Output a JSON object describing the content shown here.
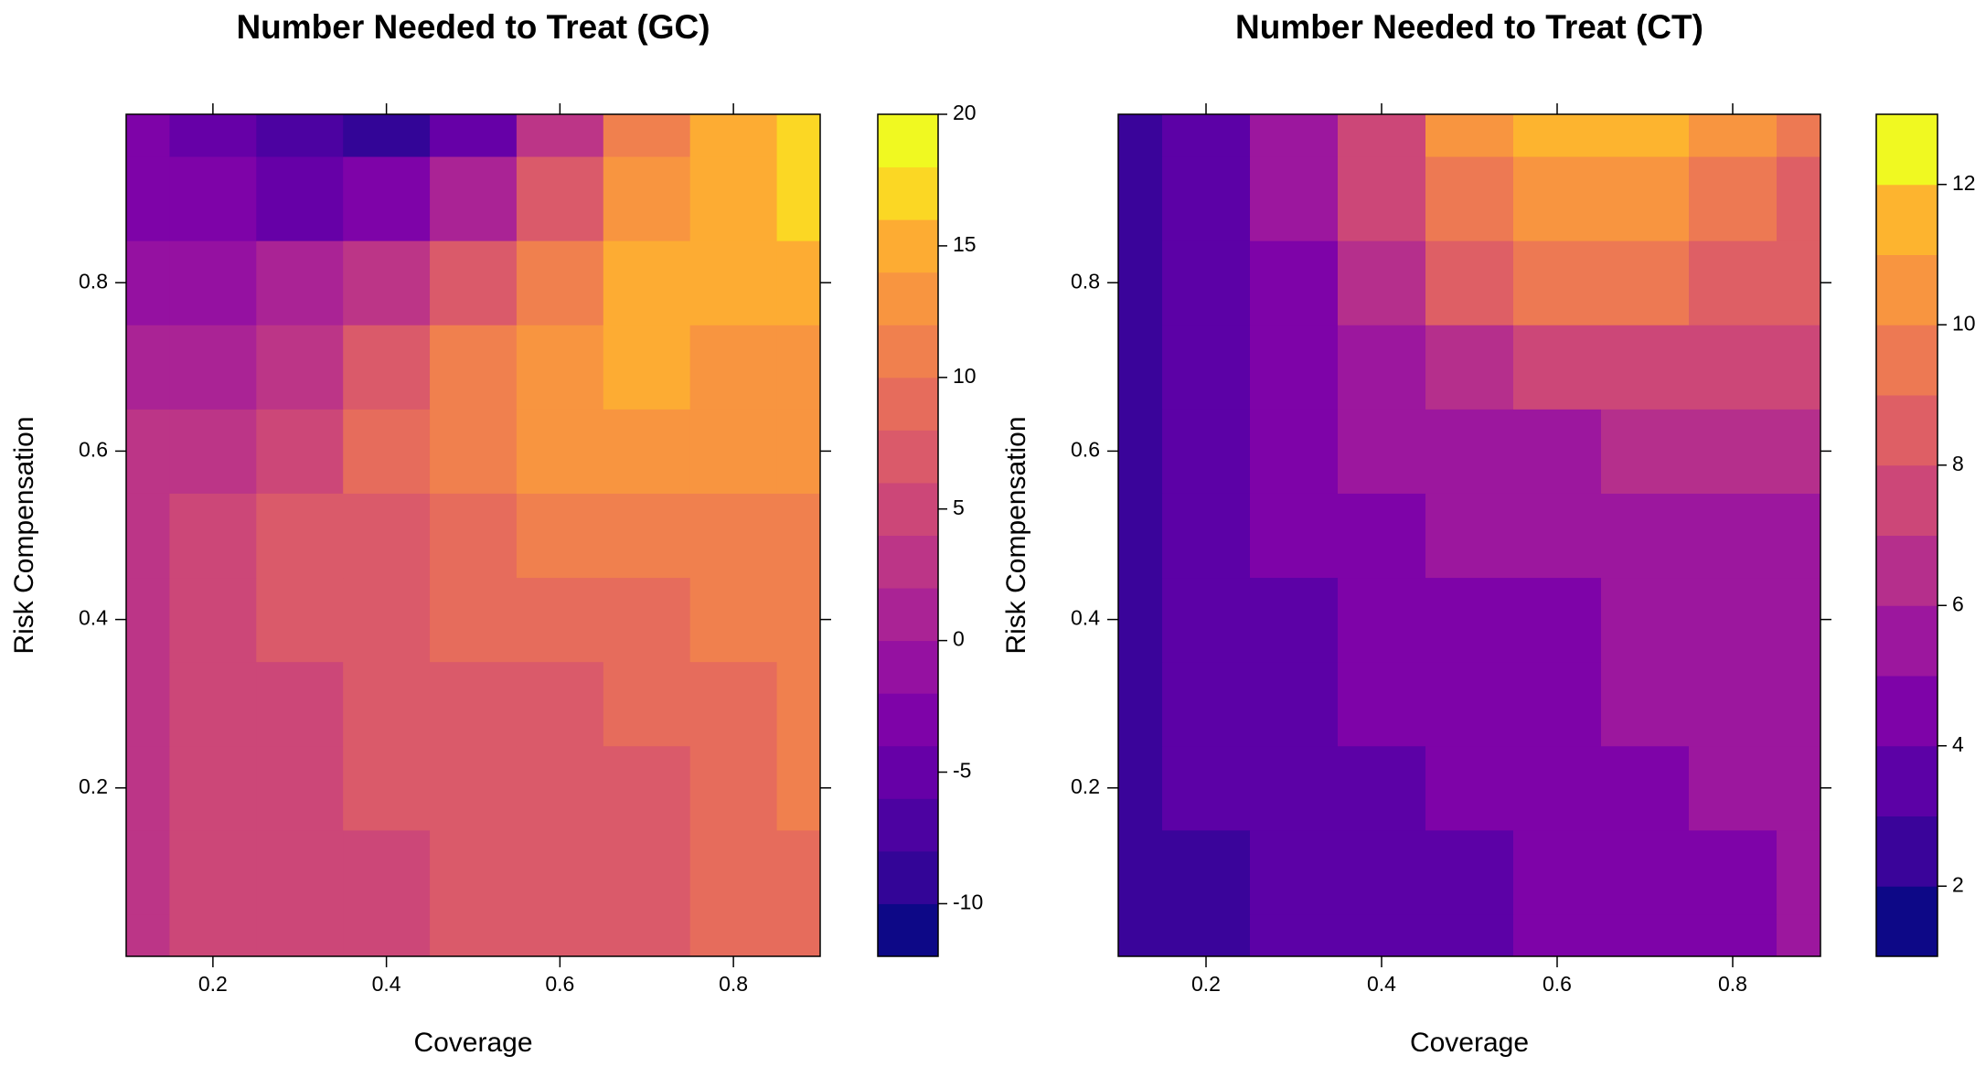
{
  "chart_data": [
    {
      "type": "contour",
      "title": "Number Needed to Treat (GC)",
      "x_label": "Coverage",
      "y_label": "Risk Compensation",
      "x": [
        0.1,
        0.2,
        0.3,
        0.4,
        0.5,
        0.6,
        0.7,
        0.8,
        0.9
      ],
      "y": [
        0,
        0.1,
        0.2,
        0.3,
        0.4,
        0.5,
        0.6,
        0.7,
        0.8,
        0.9,
        1.0
      ],
      "z": [
        [
          3,
          4,
          5,
          5,
          6,
          7,
          7,
          8,
          9
        ],
        [
          3,
          4,
          5,
          5,
          6,
          7,
          7,
          8,
          9
        ],
        [
          3,
          4,
          5,
          6,
          7,
          7,
          7,
          8,
          10
        ],
        [
          3,
          4,
          5,
          7,
          7,
          7,
          8,
          9,
          10
        ],
        [
          3,
          4,
          6,
          7,
          8,
          8,
          9,
          10,
          10
        ],
        [
          3,
          4,
          6,
          7,
          9,
          10,
          10,
          10,
          10
        ],
        [
          2,
          3,
          5,
          8,
          10,
          12,
          12,
          12,
          12
        ],
        [
          0,
          1,
          3,
          6,
          10,
          13,
          14,
          13,
          13
        ],
        [
          -2,
          -1,
          0,
          2,
          6,
          10,
          14,
          15,
          14
        ],
        [
          -3,
          -4,
          -5,
          -4,
          0,
          6,
          12,
          15,
          16
        ],
        [
          -3,
          -6,
          -8,
          -10,
          -6,
          2,
          10,
          14,
          17
        ]
      ],
      "xlim": [
        0.1,
        0.9
      ],
      "ylim": [
        0,
        1.0
      ],
      "xticks": [
        0.2,
        0.4,
        0.6,
        0.8
      ],
      "yticks": [
        0.2,
        0.4,
        0.6,
        0.8
      ],
      "levels": [
        -12,
        -10,
        -8,
        -6,
        -4,
        -2,
        0,
        2,
        4,
        6,
        8,
        10,
        12,
        14,
        16,
        18,
        20
      ],
      "colors": [
        "#0d0887",
        "#330597",
        "#4c02a1",
        "#6600a7",
        "#7e03a8",
        "#9511a1",
        "#aa2395",
        "#bc3587",
        "#cc4778",
        "#da5a6a",
        "#e66c5c",
        "#f0804e",
        "#f89540",
        "#fdac33",
        "#fbd724",
        "#f0f921"
      ],
      "zticks": [
        -10,
        -5,
        0,
        5,
        10,
        15,
        20
      ]
    },
    {
      "type": "contour",
      "title": "Number Needed to Treat (CT)",
      "x_label": "Coverage",
      "y_label": "Risk Compensation",
      "x": [
        0.1,
        0.2,
        0.3,
        0.4,
        0.5,
        0.6,
        0.7,
        0.8,
        0.9
      ],
      "y": [
        0,
        0.1,
        0.2,
        0.3,
        0.4,
        0.5,
        0.6,
        0.7,
        0.8,
        0.9,
        1.0
      ],
      "z": [
        [
          2.5,
          2.5,
          3,
          3.5,
          3.5,
          4,
          4.5,
          4.5,
          5
        ],
        [
          2.5,
          2.8,
          3.2,
          3.5,
          3.8,
          4.2,
          4.5,
          4.8,
          5
        ],
        [
          2.5,
          3,
          3.5,
          3.8,
          4,
          4.5,
          4.8,
          5,
          5.3
        ],
        [
          2.5,
          3,
          3.5,
          4,
          4.2,
          4.5,
          5,
          5.2,
          5.5
        ],
        [
          2.5,
          3.2,
          3.7,
          4.2,
          4.5,
          4.8,
          5,
          5.5,
          5.8
        ],
        [
          2.5,
          3.3,
          4,
          4.5,
          5,
          5.2,
          5.5,
          5.8,
          5.8
        ],
        [
          2.5,
          3.4,
          4.2,
          5,
          5.5,
          5.8,
          6,
          6,
          6
        ],
        [
          2.5,
          3.5,
          4.5,
          5.5,
          6.5,
          7,
          7,
          7,
          7
        ],
        [
          2.5,
          3.5,
          4.8,
          6.5,
          8,
          9,
          9,
          8.5,
          8
        ],
        [
          2.5,
          3.5,
          5,
          7,
          9,
          10.5,
          10.5,
          9.5,
          8.5
        ],
        [
          2.5,
          3.5,
          5.2,
          7.5,
          10,
          11.5,
          11,
          10,
          9
        ]
      ],
      "xlim": [
        0.1,
        0.9
      ],
      "ylim": [
        0,
        1.0
      ],
      "xticks": [
        0.2,
        0.4,
        0.6,
        0.8
      ],
      "yticks": [
        0.2,
        0.4,
        0.6,
        0.8
      ],
      "levels": [
        1,
        2,
        3,
        4,
        5,
        6,
        7,
        8,
        9,
        10,
        11,
        12,
        13
      ],
      "colors": [
        "#0d0887",
        "#3a049a",
        "#5c01a6",
        "#7e03a8",
        "#9c179e",
        "#b52f8c",
        "#cc4778",
        "#de5f65",
        "#ed7953",
        "#f89540",
        "#fdb42f",
        "#f0f921"
      ],
      "zticks": [
        2,
        4,
        6,
        8,
        10,
        12
      ]
    }
  ]
}
